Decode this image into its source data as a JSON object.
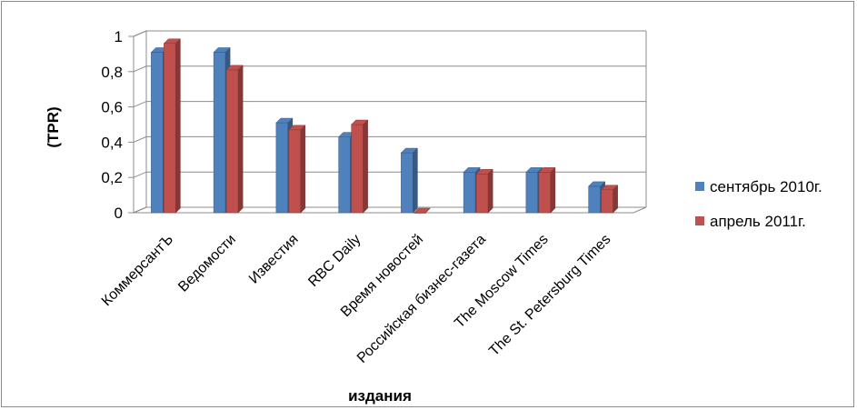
{
  "chart_data": {
    "type": "bar",
    "title": "",
    "xlabel": "издания",
    "ylabel": "(TPR)",
    "ylim": [
      0,
      1
    ],
    "yticks": [
      "0",
      "0,2",
      "0,4",
      "0,6",
      "0,8",
      "1"
    ],
    "grid": true,
    "legend_position": "right",
    "categories": [
      "КоммерсантЪ",
      "Ведомости",
      "Известия",
      "RBC Daily",
      "Время новостей",
      "Российская бизнес-газета",
      "The Moscow Times",
      "The St. Petersburg Times"
    ],
    "series": [
      {
        "name": "сентябрь 2010г.",
        "color": "#4f81bd",
        "values": [
          0.91,
          0.91,
          0.51,
          0.43,
          0.34,
          0.23,
          0.23,
          0.15
        ]
      },
      {
        "name": "апрель 2011г.",
        "color": "#c0504d",
        "values": [
          0.96,
          0.81,
          0.47,
          0.5,
          0.0,
          0.22,
          0.23,
          0.13
        ]
      }
    ]
  }
}
